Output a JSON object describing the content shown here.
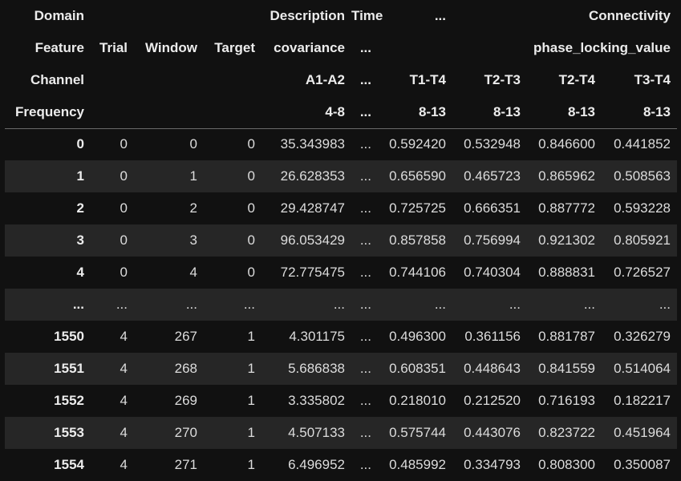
{
  "header_rows": [
    {
      "label": "Domain",
      "cells": [
        {
          "text": "",
          "span": 1
        },
        {
          "text": "Description",
          "span": 3
        },
        {
          "text": "Time",
          "span": 1
        },
        {
          "text": "...",
          "span": 1
        },
        {
          "text": "Connectivity",
          "span": 4
        }
      ]
    },
    {
      "label": "Feature",
      "cells": [
        {
          "text": "Trial",
          "span": 1
        },
        {
          "text": "Window",
          "span": 1
        },
        {
          "text": "Target",
          "span": 1
        },
        {
          "text": "covariance",
          "span": 1
        },
        {
          "text": "...",
          "span": 1
        },
        {
          "text": "phase_locking_value",
          "span": 4
        }
      ]
    },
    {
      "label": "Channel",
      "cells": [
        {
          "text": "",
          "span": 1
        },
        {
          "text": "",
          "span": 1
        },
        {
          "text": "",
          "span": 1
        },
        {
          "text": "A1-A2",
          "span": 1
        },
        {
          "text": "...",
          "span": 1
        },
        {
          "text": "T1-T4",
          "span": 1
        },
        {
          "text": "T2-T3",
          "span": 1
        },
        {
          "text": "T2-T4",
          "span": 1
        },
        {
          "text": "T3-T4",
          "span": 1
        }
      ]
    },
    {
      "label": "Frequency",
      "cells": [
        {
          "text": "",
          "span": 1
        },
        {
          "text": "",
          "span": 1
        },
        {
          "text": "",
          "span": 1
        },
        {
          "text": "4-8",
          "span": 1
        },
        {
          "text": "...",
          "span": 1
        },
        {
          "text": "8-13",
          "span": 1
        },
        {
          "text": "8-13",
          "span": 1
        },
        {
          "text": "8-13",
          "span": 1
        },
        {
          "text": "8-13",
          "span": 1
        }
      ]
    }
  ],
  "rows": [
    {
      "index": "0",
      "values": [
        "0",
        "0",
        "0",
        "35.343983",
        "...",
        "0.592420",
        "0.532948",
        "0.846600",
        "0.441852"
      ]
    },
    {
      "index": "1",
      "values": [
        "0",
        "1",
        "0",
        "26.628353",
        "...",
        "0.656590",
        "0.465723",
        "0.865962",
        "0.508563"
      ]
    },
    {
      "index": "2",
      "values": [
        "0",
        "2",
        "0",
        "29.428747",
        "...",
        "0.725725",
        "0.666351",
        "0.887772",
        "0.593228"
      ]
    },
    {
      "index": "3",
      "values": [
        "0",
        "3",
        "0",
        "96.053429",
        "...",
        "0.857858",
        "0.756994",
        "0.921302",
        "0.805921"
      ]
    },
    {
      "index": "4",
      "values": [
        "0",
        "4",
        "0",
        "72.775475",
        "...",
        "0.744106",
        "0.740304",
        "0.888831",
        "0.726527"
      ]
    },
    {
      "index": "...",
      "values": [
        "...",
        "...",
        "...",
        "...",
        "...",
        "...",
        "...",
        "...",
        "..."
      ]
    },
    {
      "index": "1550",
      "values": [
        "4",
        "267",
        "1",
        "4.301175",
        "...",
        "0.496300",
        "0.361156",
        "0.881787",
        "0.326279"
      ]
    },
    {
      "index": "1551",
      "values": [
        "4",
        "268",
        "1",
        "5.686838",
        "...",
        "0.608351",
        "0.448643",
        "0.841559",
        "0.514064"
      ]
    },
    {
      "index": "1552",
      "values": [
        "4",
        "269",
        "1",
        "3.335802",
        "...",
        "0.218010",
        "0.212520",
        "0.716193",
        "0.182217"
      ]
    },
    {
      "index": "1553",
      "values": [
        "4",
        "270",
        "1",
        "4.507133",
        "...",
        "0.575744",
        "0.443076",
        "0.823722",
        "0.451964"
      ]
    },
    {
      "index": "1554",
      "values": [
        "4",
        "271",
        "1",
        "6.496952",
        "...",
        "0.485992",
        "0.334793",
        "0.808300",
        "0.350087"
      ]
    }
  ],
  "colors": {
    "background": "#111111",
    "stripe": "#262626",
    "text": "#e6e6e6"
  }
}
